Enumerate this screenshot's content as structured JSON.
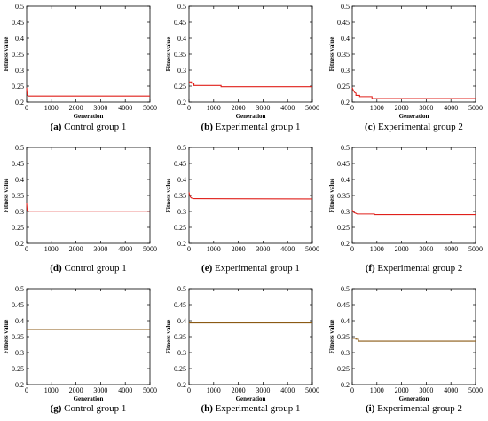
{
  "chart_data": [
    {
      "type": "line",
      "caption_letter": "(a)",
      "caption_text": " Control group 1",
      "xlabel": "Generation",
      "ylabel": "Fitness value",
      "xlim": [
        0,
        5000
      ],
      "ylim": [
        0.2,
        0.5
      ],
      "xticks": [
        "0",
        "1000",
        "2000",
        "3000",
        "4000",
        "5000"
      ],
      "yticks": [
        "0.2",
        "0.25",
        "0.3",
        "0.35",
        "0.4",
        "0.45",
        "0.5"
      ],
      "series": [
        {
          "color": "#e0201b",
          "x": [
            0,
            10,
            20,
            40,
            60,
            5000
          ],
          "y": [
            0.245,
            0.235,
            0.226,
            0.22,
            0.219,
            0.219
          ]
        }
      ]
    },
    {
      "type": "line",
      "caption_letter": "(b)",
      "caption_text": " Experimental group 1",
      "xlabel": "Generation",
      "ylabel": "Fitness value",
      "xlim": [
        0,
        5000
      ],
      "ylim": [
        0.2,
        0.5
      ],
      "xticks": [
        "0",
        "1000",
        "2000",
        "3000",
        "4000",
        "5000"
      ],
      "yticks": [
        "0.2",
        "0.25",
        "0.3",
        "0.35",
        "0.4",
        "0.45",
        "0.5"
      ],
      "series": [
        {
          "color": "#e0201b",
          "x": [
            0,
            100,
            100,
            200,
            200,
            1300,
            1300,
            5000
          ],
          "y": [
            0.263,
            0.263,
            0.259,
            0.259,
            0.252,
            0.252,
            0.248,
            0.248
          ]
        }
      ]
    },
    {
      "type": "line",
      "caption_letter": "(c)",
      "caption_text": " Experimental group 2",
      "xlabel": "Generation",
      "ylabel": "Fitness value",
      "xlim": [
        0,
        5000
      ],
      "ylim": [
        0.2,
        0.5
      ],
      "xticks": [
        "0",
        "1000",
        "2000",
        "3000",
        "4000",
        "5000"
      ],
      "yticks": [
        "0.2",
        "0.25",
        "0.3",
        "0.35",
        "0.4",
        "0.45",
        "0.5"
      ],
      "series": [
        {
          "color": "#e0201b",
          "x": [
            0,
            50,
            100,
            150,
            150,
            300,
            300,
            800,
            800,
            5000
          ],
          "y": [
            0.245,
            0.236,
            0.23,
            0.228,
            0.221,
            0.221,
            0.217,
            0.217,
            0.211,
            0.211
          ]
        }
      ]
    },
    {
      "type": "line",
      "caption_letter": "(d)",
      "caption_text": " Control group 1",
      "xlabel": "",
      "ylabel": "Fitness value",
      "xlim": [
        0,
        5000
      ],
      "ylim": [
        0.2,
        0.5
      ],
      "xticks": [
        "0",
        "1000",
        "2000",
        "3000",
        "4000",
        "5000"
      ],
      "yticks": [
        "0.2",
        "0.25",
        "0.3",
        "0.35",
        "0.4",
        "0.45",
        "0.5"
      ],
      "series": [
        {
          "color": "#e0201b",
          "x": [
            0,
            10,
            20,
            40,
            5000
          ],
          "y": [
            0.325,
            0.315,
            0.305,
            0.301,
            0.301
          ]
        }
      ]
    },
    {
      "type": "line",
      "caption_letter": "(e)",
      "caption_text": " Experimental group 1",
      "xlabel": "",
      "ylabel": "Fitness value",
      "xlim": [
        0,
        5000
      ],
      "ylim": [
        0.2,
        0.5
      ],
      "xticks": [
        "0",
        "1000",
        "2000",
        "3000",
        "4000",
        "5000"
      ],
      "yticks": [
        "0.2",
        "0.25",
        "0.3",
        "0.35",
        "0.4",
        "0.45",
        "0.5"
      ],
      "series": [
        {
          "color": "#e0201b",
          "x": [
            0,
            30,
            60,
            100,
            200,
            5000
          ],
          "y": [
            0.36,
            0.35,
            0.345,
            0.342,
            0.34,
            0.339
          ]
        }
      ]
    },
    {
      "type": "line",
      "caption_letter": "(f)",
      "caption_text": " Experimental group 2",
      "xlabel": "",
      "ylabel": "Fitness value",
      "xlim": [
        0,
        5000
      ],
      "ylim": [
        0.2,
        0.5
      ],
      "xticks": [
        "0",
        "1000",
        "2000",
        "3000",
        "4000",
        "5000"
      ],
      "yticks": [
        "0.2",
        "0.25",
        "0.3",
        "0.35",
        "0.4",
        "0.45",
        "0.5"
      ],
      "series": [
        {
          "color": "#e0201b",
          "x": [
            0,
            30,
            80,
            150,
            200,
            900,
            900,
            5000
          ],
          "y": [
            0.305,
            0.3,
            0.296,
            0.294,
            0.292,
            0.292,
            0.29,
            0.29
          ]
        }
      ]
    },
    {
      "type": "line",
      "caption_letter": "(g)",
      "caption_text": " Control group 1",
      "xlabel": "Generation",
      "ylabel": "Fitness value",
      "xlim": [
        0,
        5000
      ],
      "ylim": [
        0.2,
        0.5
      ],
      "xticks": [
        "0",
        "1000",
        "2000",
        "3000",
        "4000",
        "5000"
      ],
      "yticks": [
        "0.2",
        "0.25",
        "0.3",
        "0.35",
        "0.4",
        "0.45",
        "0.5"
      ],
      "series": [
        {
          "color": "#8b5a14",
          "x": [
            0,
            5000
          ],
          "y": [
            0.372,
            0.372
          ]
        }
      ]
    },
    {
      "type": "line",
      "caption_letter": "(h)",
      "caption_text": " Experimental group 1",
      "xlabel": "Generation",
      "ylabel": "Fitness value",
      "xlim": [
        0,
        5000
      ],
      "ylim": [
        0.2,
        0.5
      ],
      "xticks": [
        "0",
        "1000",
        "2000",
        "3000",
        "4000",
        "5000"
      ],
      "yticks": [
        "0.2",
        "0.25",
        "0.3",
        "0.35",
        "0.4",
        "0.45",
        "0.5"
      ],
      "series": [
        {
          "color": "#8b5a14",
          "x": [
            0,
            5000
          ],
          "y": [
            0.393,
            0.393
          ]
        }
      ]
    },
    {
      "type": "line",
      "caption_letter": "(i)",
      "caption_text": " Experimental group 2",
      "xlabel": "Generation",
      "ylabel": "Fitness value",
      "xlim": [
        0,
        5000
      ],
      "ylim": [
        0.2,
        0.5
      ],
      "xticks": [
        "0",
        "1000",
        "2000",
        "3000",
        "4000",
        "5000"
      ],
      "yticks": [
        "0.2",
        "0.25",
        "0.3",
        "0.35",
        "0.4",
        "0.45",
        "0.5"
      ],
      "series": [
        {
          "color": "#8b5a14",
          "x": [
            0,
            150,
            150,
            250,
            250,
            5000
          ],
          "y": [
            0.345,
            0.345,
            0.342,
            0.342,
            0.336,
            0.336
          ]
        }
      ]
    }
  ]
}
